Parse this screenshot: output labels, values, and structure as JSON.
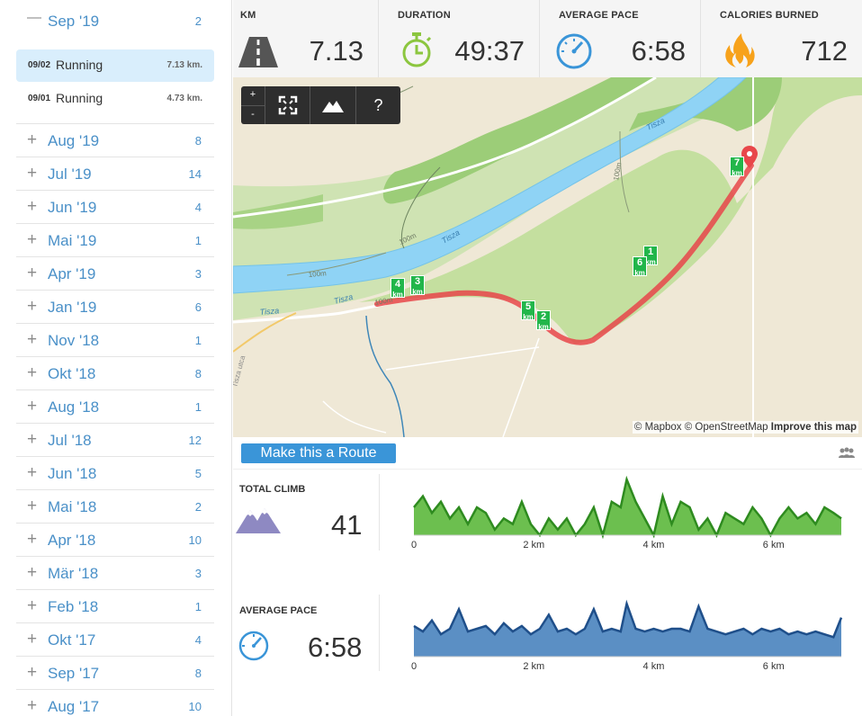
{
  "sidebar": {
    "current_month": {
      "sign": "—",
      "label": "Sep '19",
      "count": "2"
    },
    "activities": [
      {
        "date": "09/02",
        "type": "Running",
        "distance": "7.13 km.",
        "selected": true
      },
      {
        "date": "09/01",
        "type": "Running",
        "distance": "4.73 km.",
        "selected": false
      }
    ],
    "months": [
      {
        "label": "Aug '19",
        "count": "8"
      },
      {
        "label": "Jul '19",
        "count": "14"
      },
      {
        "label": "Jun '19",
        "count": "4"
      },
      {
        "label": "Mai '19",
        "count": "1"
      },
      {
        "label": "Apr '19",
        "count": "3"
      },
      {
        "label": "Jan '19",
        "count": "6"
      },
      {
        "label": "Nov '18",
        "count": "1"
      },
      {
        "label": "Okt '18",
        "count": "8"
      },
      {
        "label": "Aug '18",
        "count": "1"
      },
      {
        "label": "Jul '18",
        "count": "12"
      },
      {
        "label": "Jun '18",
        "count": "5"
      },
      {
        "label": "Mai '18",
        "count": "2"
      },
      {
        "label": "Apr '18",
        "count": "10"
      },
      {
        "label": "Mär '18",
        "count": "3"
      },
      {
        "label": "Feb '18",
        "count": "1"
      },
      {
        "label": "Okt '17",
        "count": "4"
      },
      {
        "label": "Sep '17",
        "count": "8"
      },
      {
        "label": "Aug '17",
        "count": "10"
      }
    ],
    "expand_sign": "+"
  },
  "stats": {
    "km": {
      "label": "KM",
      "value": "7.13",
      "icon": "road-icon"
    },
    "duration": {
      "label": "DURATION",
      "value": "49:37",
      "icon": "stopwatch-icon"
    },
    "pace": {
      "label": "AVERAGE PACE",
      "value": "6:58",
      "icon": "speedometer-icon"
    },
    "calories": {
      "label": "CALORIES BURNED",
      "value": "712",
      "icon": "flame-icon"
    }
  },
  "map": {
    "controls": {
      "zoom_in": "+",
      "zoom_out": "-",
      "help": "?"
    },
    "labels": {
      "river_1": "Tisza",
      "river_2": "Tisza",
      "river_3": "Tisza",
      "river_4": "Tisza",
      "contour_1": "100m",
      "contour_2": "100m",
      "contour_3": "100m",
      "contour_4": "100m",
      "street": "Tisza utca"
    },
    "km_markers": [
      {
        "n": "1",
        "unit": "km"
      },
      {
        "n": "2",
        "unit": "km"
      },
      {
        "n": "3",
        "unit": "km"
      },
      {
        "n": "4",
        "unit": "km"
      },
      {
        "n": "5",
        "unit": "km"
      },
      {
        "n": "6",
        "unit": "km"
      },
      {
        "n": "7",
        "unit": "km"
      }
    ],
    "attribution": {
      "mapbox": "© Mapbox",
      "osm": "© OpenStreetMap",
      "improve": "Improve this map"
    }
  },
  "route": {
    "button_label": "Make this a Route"
  },
  "colors": {
    "accent": "#3a95d8",
    "link": "#4a90c8",
    "climb_fill": "#6cbf4f",
    "climb_line": "#2e8b1f",
    "pace_fill": "#5b8fc4",
    "pace_line": "#1f4f8a",
    "route": "#e8474a",
    "water": "#8fd3f5",
    "marker": "#22b64a"
  },
  "climb": {
    "label": "TOTAL CLIMB",
    "value": "41",
    "icon": "mountain-icon",
    "chart_data": {
      "type": "area",
      "x_ticks": [
        "0",
        "2 km",
        "4 km",
        "6 km"
      ],
      "x": [
        0,
        0.15,
        0.3,
        0.45,
        0.6,
        0.75,
        0.9,
        1.05,
        1.2,
        1.35,
        1.5,
        1.65,
        1.8,
        1.95,
        2.1,
        2.25,
        2.4,
        2.55,
        2.7,
        2.85,
        3.0,
        3.15,
        3.3,
        3.45,
        3.55,
        3.7,
        3.85,
        4.0,
        4.15,
        4.3,
        4.45,
        4.6,
        4.75,
        4.9,
        5.05,
        5.2,
        5.35,
        5.5,
        5.65,
        5.8,
        5.95,
        6.1,
        6.25,
        6.4,
        6.55,
        6.7,
        6.85,
        7.0,
        7.13
      ],
      "values": [
        0.5,
        0.7,
        0.4,
        0.6,
        0.3,
        0.5,
        0.2,
        0.5,
        0.4,
        0.1,
        0.3,
        0.2,
        0.6,
        0.2,
        0.0,
        0.3,
        0.1,
        0.3,
        0.0,
        0.2,
        0.5,
        0.0,
        0.6,
        0.5,
        1.0,
        0.6,
        0.3,
        0.0,
        0.7,
        0.2,
        0.6,
        0.5,
        0.1,
        0.3,
        0.0,
        0.4,
        0.3,
        0.2,
        0.5,
        0.3,
        0.0,
        0.3,
        0.5,
        0.3,
        0.4,
        0.2,
        0.5,
        0.4,
        0.3
      ],
      "xlim": [
        0,
        7.13
      ]
    }
  },
  "pace_row": {
    "label": "AVERAGE PACE",
    "value": "6:58",
    "icon": "speedometer-icon",
    "chart_data": {
      "type": "area",
      "x_ticks": [
        "0",
        "2 km",
        "4 km",
        "6 km"
      ],
      "x": [
        0,
        0.15,
        0.3,
        0.45,
        0.6,
        0.75,
        0.9,
        1.05,
        1.2,
        1.35,
        1.5,
        1.65,
        1.8,
        1.95,
        2.1,
        2.25,
        2.4,
        2.55,
        2.7,
        2.85,
        3.0,
        3.15,
        3.3,
        3.45,
        3.55,
        3.7,
        3.85,
        4.0,
        4.15,
        4.3,
        4.45,
        4.6,
        4.75,
        4.9,
        5.05,
        5.2,
        5.35,
        5.5,
        5.65,
        5.8,
        5.95,
        6.1,
        6.25,
        6.4,
        6.55,
        6.7,
        6.85,
        7.0,
        7.13
      ],
      "values": [
        0.55,
        0.45,
        0.65,
        0.4,
        0.5,
        0.85,
        0.45,
        0.5,
        0.55,
        0.4,
        0.6,
        0.45,
        0.55,
        0.4,
        0.5,
        0.75,
        0.45,
        0.5,
        0.4,
        0.5,
        0.85,
        0.45,
        0.5,
        0.45,
        0.95,
        0.5,
        0.45,
        0.5,
        0.45,
        0.5,
        0.5,
        0.45,
        0.9,
        0.5,
        0.45,
        0.4,
        0.45,
        0.5,
        0.4,
        0.5,
        0.45,
        0.5,
        0.4,
        0.45,
        0.4,
        0.45,
        0.4,
        0.35,
        0.7
      ],
      "xlim": [
        0,
        7.13
      ]
    }
  }
}
